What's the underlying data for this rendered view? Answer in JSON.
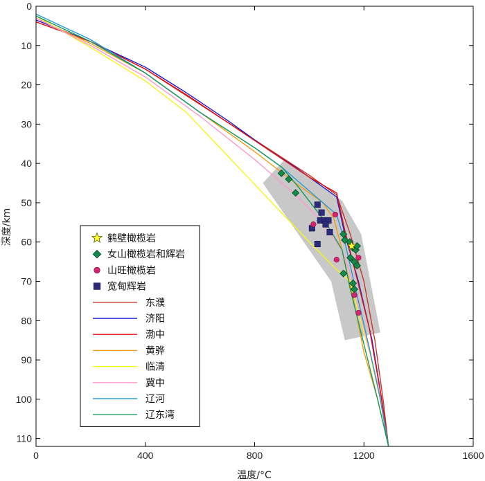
{
  "chart_data": {
    "type": "line",
    "title": "",
    "xlabel": "温度/°C",
    "ylabel": "深度/km",
    "xlim": [
      0,
      1600
    ],
    "ylim": [
      0,
      112
    ],
    "y_inverted": true,
    "x_ticks": [
      0,
      400,
      800,
      1200,
      1600
    ],
    "y_ticks": [
      0,
      10,
      20,
      30,
      40,
      50,
      60,
      70,
      80,
      90,
      100,
      110
    ],
    "grid": false,
    "legend_position": "left",
    "shaded_region": {
      "color": "#c8c8c8",
      "polygon": [
        [
          910,
          39
        ],
        [
          1120,
          49.5
        ],
        [
          1190,
          58
        ],
        [
          1260,
          83
        ],
        [
          1130,
          85
        ],
        [
          1080,
          70
        ],
        [
          830,
          45
        ]
      ]
    },
    "series": [
      {
        "name": "东濮",
        "color": "#c0392b",
        "type": "line",
        "points": [
          [
            0,
            3.5
          ],
          [
            200,
            9
          ],
          [
            400,
            16
          ],
          [
            600,
            25
          ],
          [
            800,
            34
          ],
          [
            900,
            38.5
          ],
          [
            1000,
            43
          ],
          [
            1100,
            48
          ],
          [
            1150,
            58
          ],
          [
            1200,
            70
          ],
          [
            1240,
            85
          ],
          [
            1270,
            100
          ],
          [
            1290,
            112
          ]
        ]
      },
      {
        "name": "济阳",
        "color": "#1f1fd0",
        "type": "line",
        "points": [
          [
            0,
            3.5
          ],
          [
            200,
            9
          ],
          [
            400,
            15.5
          ],
          [
            550,
            22
          ],
          [
            700,
            29
          ],
          [
            850,
            36.5
          ],
          [
            950,
            41
          ],
          [
            1050,
            46
          ],
          [
            1100,
            48.5
          ],
          [
            1130,
            58
          ],
          [
            1180,
            70
          ],
          [
            1230,
            85
          ],
          [
            1265,
            100
          ],
          [
            1290,
            112
          ]
        ]
      },
      {
        "name": "渤中",
        "color": "#dd1111",
        "type": "line",
        "points": [
          [
            0,
            4
          ],
          [
            200,
            9
          ],
          [
            400,
            16
          ],
          [
            550,
            22.5
          ],
          [
            700,
            29.5
          ],
          [
            850,
            36.5
          ],
          [
            1000,
            43.5
          ],
          [
            1100,
            47.5
          ],
          [
            1130,
            57
          ],
          [
            1170,
            68
          ],
          [
            1220,
            82
          ],
          [
            1260,
            98
          ],
          [
            1290,
            112
          ]
        ]
      },
      {
        "name": "黄骅",
        "color": "#f39c12",
        "type": "line",
        "points": [
          [
            0,
            3
          ],
          [
            200,
            9.5
          ],
          [
            400,
            17
          ],
          [
            600,
            27
          ],
          [
            800,
            37
          ],
          [
            950,
            45
          ],
          [
            1050,
            50
          ],
          [
            1090,
            54
          ],
          [
            1120,
            62
          ],
          [
            1160,
            74
          ],
          [
            1200,
            88
          ],
          [
            1250,
            100
          ],
          [
            1290,
            112
          ]
        ]
      },
      {
        "name": "临清",
        "color": "#f5f51a",
        "type": "line",
        "points": [
          [
            0,
            2.5
          ],
          [
            200,
            10.5
          ],
          [
            400,
            19
          ],
          [
            550,
            27
          ],
          [
            700,
            38
          ],
          [
            850,
            49
          ],
          [
            1000,
            60
          ],
          [
            1100,
            67
          ],
          [
            1150,
            70
          ],
          [
            1180,
            78
          ],
          [
            1220,
            88
          ],
          [
            1260,
            100
          ],
          [
            1290,
            112
          ]
        ]
      },
      {
        "name": "冀中",
        "color": "#ff99cc",
        "type": "line",
        "points": [
          [
            0,
            3
          ],
          [
            200,
            10
          ],
          [
            400,
            18
          ],
          [
            600,
            28
          ],
          [
            800,
            39
          ],
          [
            950,
            48
          ],
          [
            1050,
            55
          ],
          [
            1120,
            62
          ],
          [
            1160,
            70
          ],
          [
            1200,
            82
          ],
          [
            1250,
            96
          ],
          [
            1290,
            112
          ]
        ]
      },
      {
        "name": "辽河",
        "color": "#2a9ad6",
        "type": "line",
        "points": [
          [
            0,
            2
          ],
          [
            200,
            8.5
          ],
          [
            400,
            17
          ],
          [
            600,
            27
          ],
          [
            800,
            36
          ],
          [
            900,
            41
          ],
          [
            1000,
            47
          ],
          [
            1100,
            53
          ],
          [
            1130,
            60
          ],
          [
            1170,
            72
          ],
          [
            1220,
            87
          ],
          [
            1260,
            100
          ],
          [
            1290,
            112
          ]
        ]
      },
      {
        "name": "辽东湾",
        "color": "#1a9a5a",
        "type": "line",
        "points": [
          [
            0,
            2.5
          ],
          [
            200,
            9
          ],
          [
            400,
            17
          ],
          [
            600,
            27
          ],
          [
            800,
            36
          ],
          [
            900,
            41
          ],
          [
            960,
            46
          ],
          [
            1060,
            55
          ],
          [
            1120,
            62
          ],
          [
            1150,
            72
          ],
          [
            1200,
            86
          ],
          [
            1250,
            100
          ],
          [
            1290,
            112
          ]
        ]
      },
      {
        "name": "鹤壁橄榄岩",
        "type": "scatter",
        "marker": "star",
        "color": "#ffff33",
        "points": [
          [
            1155,
            61
          ]
        ]
      },
      {
        "name": "女山橄榄岩和辉岩",
        "type": "scatter",
        "marker": "diamond",
        "color": "#138a4a",
        "points": [
          [
            898,
            42.5
          ],
          [
            925,
            44
          ],
          [
            950,
            47.5
          ],
          [
            1125,
            58
          ],
          [
            1130,
            59.5
          ],
          [
            1148,
            60
          ],
          [
            1160,
            61.5
          ],
          [
            1170,
            62
          ],
          [
            1175,
            61
          ],
          [
            1150,
            64
          ],
          [
            1165,
            65
          ],
          [
            1175,
            66
          ],
          [
            1125,
            68
          ],
          [
            1160,
            70.5
          ],
          [
            1165,
            72
          ]
        ]
      },
      {
        "name": "山旺橄榄岩",
        "type": "scatter",
        "marker": "circle",
        "color": "#d6246e",
        "points": [
          [
            1015,
            55.5
          ],
          [
            1095,
            53
          ],
          [
            1100,
            64.5
          ],
          [
            1180,
            64
          ],
          [
            1165,
            73.5
          ],
          [
            1180,
            78
          ]
        ]
      },
      {
        "name": "宽甸辉岩",
        "type": "scatter",
        "marker": "square",
        "color": "#2b2b7a",
        "points": [
          [
            1030,
            50.5
          ],
          [
            1045,
            52.5
          ],
          [
            1040,
            54.5
          ],
          [
            1055,
            54.5
          ],
          [
            1070,
            54.5
          ],
          [
            1060,
            55.5
          ],
          [
            1075,
            57.5
          ],
          [
            1010,
            56.5
          ],
          [
            1030,
            60.5
          ]
        ]
      }
    ]
  }
}
